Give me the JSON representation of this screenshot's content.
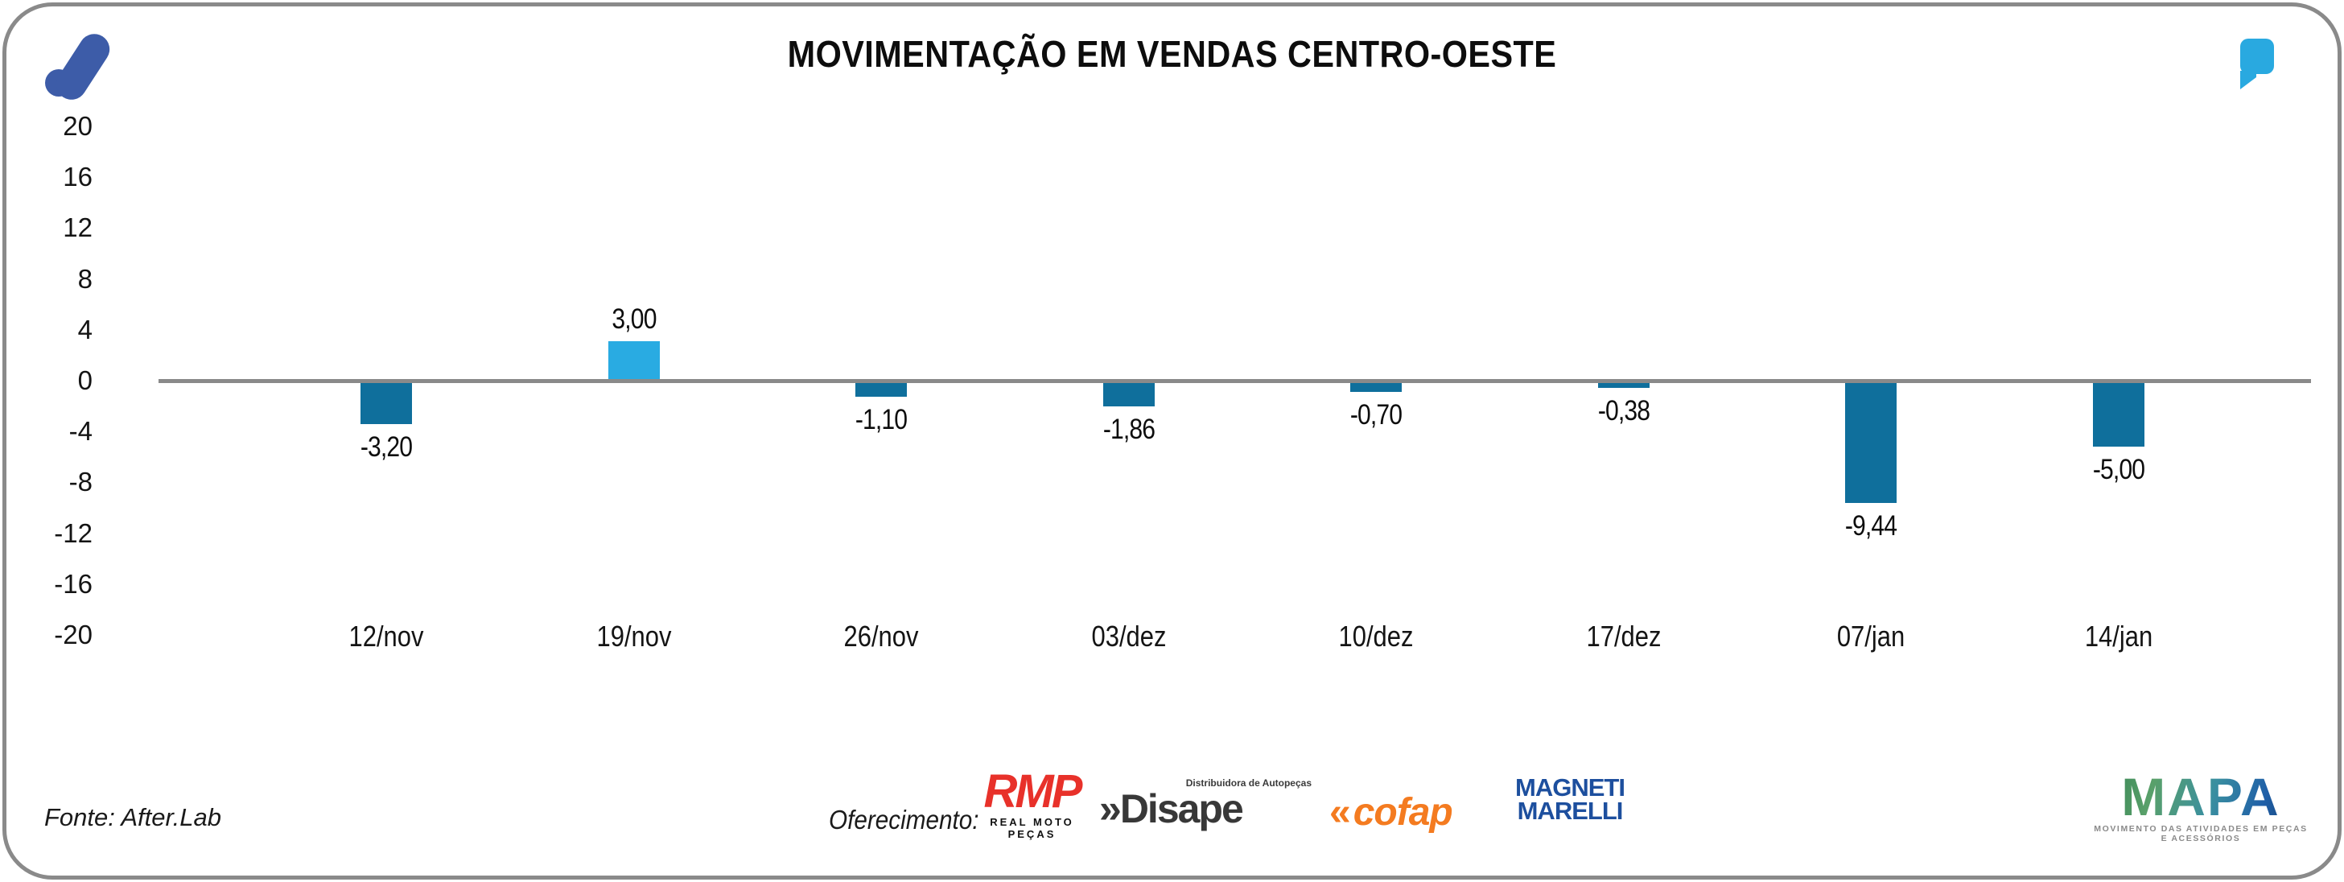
{
  "header": {
    "title": "MOVIMENTAÇÃO EM VENDAS CENTRO-OESTE",
    "brand_icon": "afterlab-a-icon",
    "brand_color": "#3d5ca8",
    "quote_icon": "quote-icon",
    "quote_color": "#29a9e0"
  },
  "chart_data": {
    "type": "bar",
    "title": "MOVIMENTAÇÃO EM VENDAS CENTRO-OESTE",
    "categories": [
      "12/nov",
      "19/nov",
      "26/nov",
      "03/dez",
      "10/dez",
      "17/dez",
      "07/jan",
      "14/jan"
    ],
    "values": [
      -3.2,
      3.0,
      -1.1,
      -1.86,
      -0.7,
      -0.38,
      -9.44,
      -5.0
    ],
    "value_labels": [
      "-3,20",
      "3,00",
      "-1,10",
      "-1,86",
      "-0,70",
      "-0,38",
      "-9,44",
      "-5,00"
    ],
    "y_ticks": [
      20,
      16,
      12,
      8,
      4,
      0,
      -4,
      -8,
      -12,
      -16,
      -20
    ],
    "ylim": [
      -20,
      20
    ],
    "xlabel": "",
    "ylabel": "",
    "grid": false,
    "legend": false,
    "colors": {
      "positive": "#29abe2",
      "negative": "#0f6f9c",
      "axis_line": "#8a8a8a"
    }
  },
  "footer": {
    "source": "Fonte: After.Lab",
    "sponsor_label": "Oferecimento:",
    "sponsors": [
      {
        "name": "RMP",
        "subtitle": "REAL MOTO PEÇAS",
        "color": "#e8312a"
      },
      {
        "name": "Disape",
        "pre": "»",
        "subtitle_top": "Distribuidora de Autopeças",
        "color": "#383838"
      },
      {
        "name": "cofap",
        "pre": "«",
        "color": "#f47b20"
      },
      {
        "name": "MAGNETI",
        "line2": "MARELLI",
        "color": "#1d4f9e"
      }
    ],
    "mapa": {
      "title": "MAPA",
      "tagline": "MOVIMENTO DAS ATIVIDADES EM PEÇAS E ACESSÓRIOS"
    }
  }
}
